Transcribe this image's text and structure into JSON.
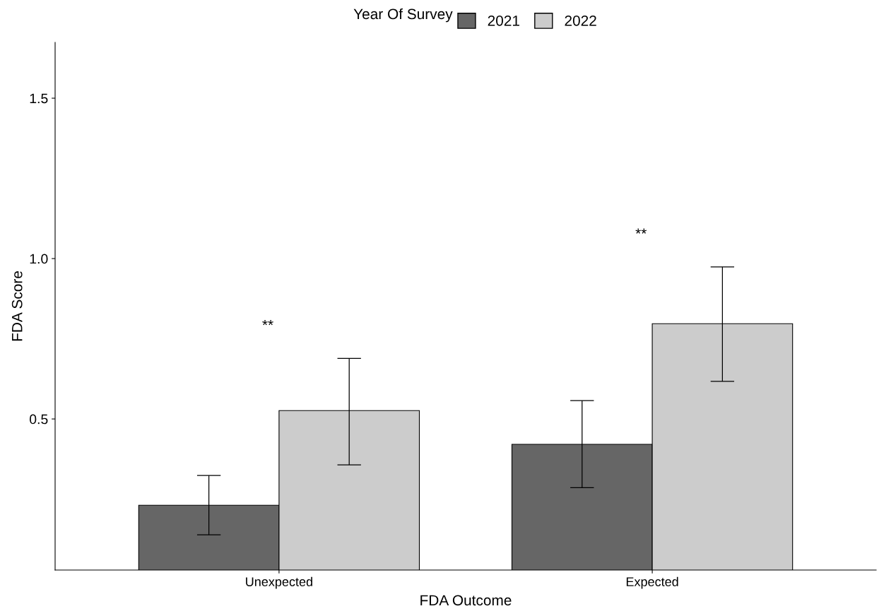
{
  "chart_data": {
    "type": "bar",
    "xlabel": "FDA Outcome",
    "ylabel": "FDA Score",
    "legend_title": "Year Of Survey",
    "legend": "top",
    "categories": [
      "Unexpected",
      "Expected"
    ],
    "series": [
      {
        "name": "2021",
        "color": "#666666",
        "values": [
          0.231,
          0.421
        ],
        "errors": [
          [
            0.139,
            0.324
          ],
          [
            0.286,
            0.557
          ]
        ]
      },
      {
        "name": "2022",
        "color": "#cccccc",
        "values": [
          0.526,
          0.797
        ],
        "errors": [
          [
            0.357,
            0.689
          ],
          [
            0.617,
            0.974
          ]
        ]
      }
    ],
    "annotations": [
      "**",
      "**"
    ],
    "ylim": [
      0.029,
      1.674
    ],
    "yticks": [
      0.5,
      {
        "value": 1,
        "label": "1.0"
      },
      1.5
    ],
    "grid": false
  }
}
